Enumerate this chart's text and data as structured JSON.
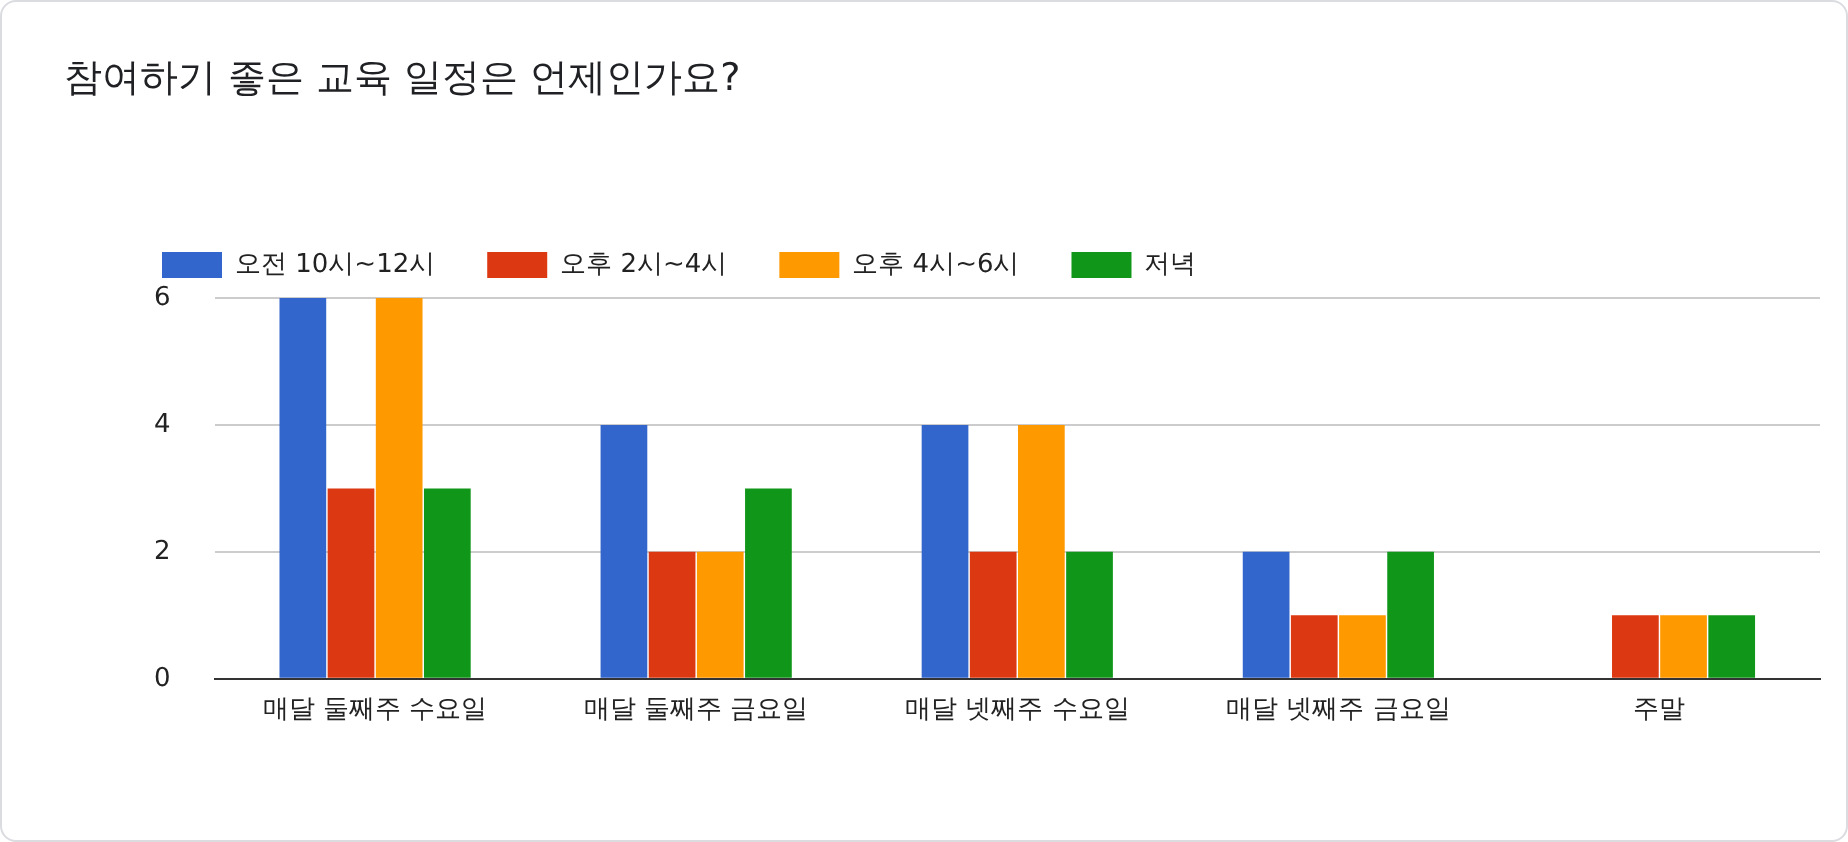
{
  "chart_data": {
    "type": "bar",
    "title": "참여하기 좋은 교육 일정은 언제인가요?",
    "categories": [
      "매달 둘째주 수요일",
      "매달 둘째주 금요일",
      "매달 넷째주 수요일",
      "매달 넷째주 금요일",
      "주말"
    ],
    "series": [
      {
        "name": "오전 10시~12시",
        "color": "#3366cc",
        "values": [
          6,
          4,
          4,
          2,
          0
        ]
      },
      {
        "name": "오후 2시~4시",
        "color": "#dc3912",
        "values": [
          3,
          2,
          2,
          1,
          1
        ]
      },
      {
        "name": "오후 4시~6시",
        "color": "#ff9900",
        "values": [
          6,
          2,
          4,
          1,
          1
        ]
      },
      {
        "name": "저녁",
        "color": "#109618",
        "values": [
          3,
          3,
          2,
          2,
          1
        ]
      }
    ],
    "ylim": [
      0,
      6
    ],
    "yticks": [
      0,
      2,
      4,
      6
    ],
    "grid": "y",
    "legend": "top left"
  }
}
